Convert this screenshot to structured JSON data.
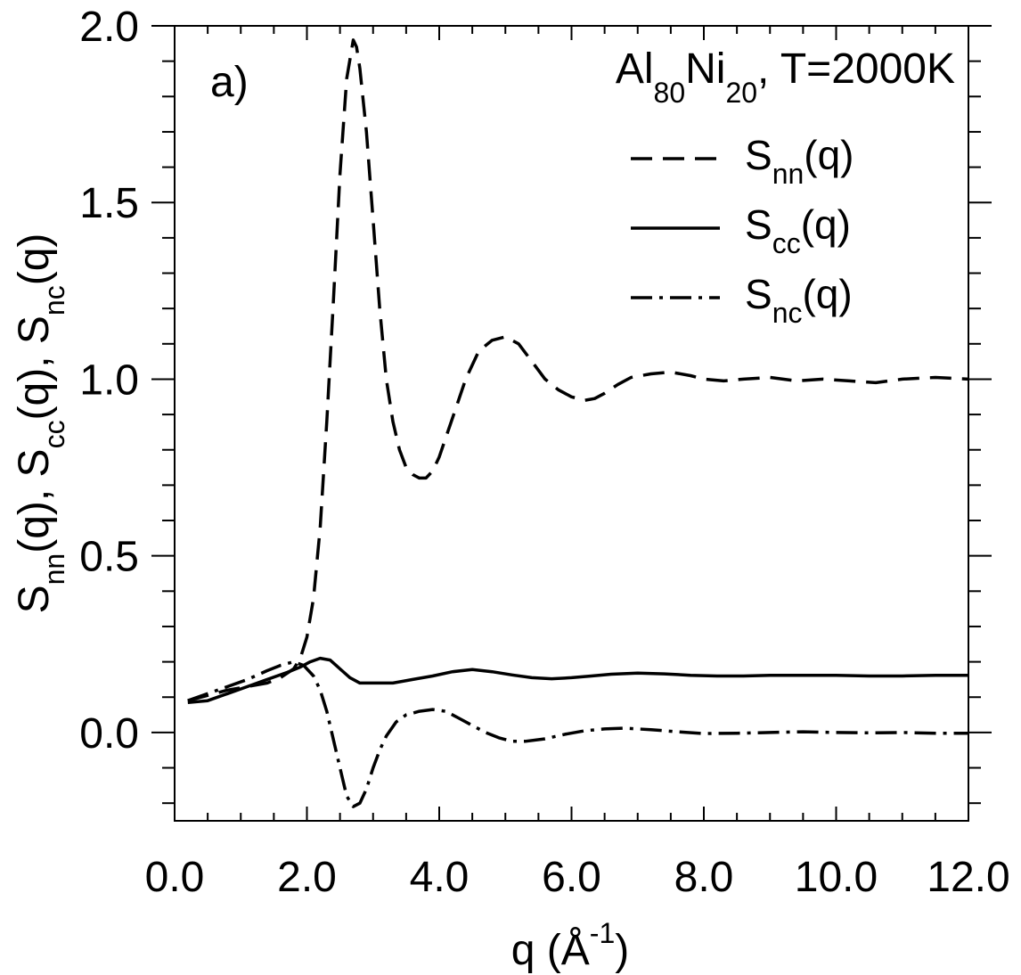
{
  "chart_data": {
    "type": "line",
    "panel_label": "a)",
    "annotation": {
      "base1": "Al",
      "sub1": "80",
      "base2": "Ni",
      "sub2": "20",
      "rest": ", T=2000K"
    },
    "xlabel": {
      "main": "q (Å",
      "sup": "-1",
      "close": ")"
    },
    "ylabel": {
      "parts": [
        {
          "base": "S",
          "sub": "nn",
          "rest": "(q), "
        },
        {
          "base": "S",
          "sub": "cc",
          "rest": "(q), "
        },
        {
          "base": "S",
          "sub": "nc",
          "rest": "(q)"
        }
      ]
    },
    "xlim": [
      0,
      12
    ],
    "ylim": [
      -0.25,
      2.0
    ],
    "x_ticks": [
      "0.0",
      "2.0",
      "4.0",
      "6.0",
      "8.0",
      "10.0",
      "12.0"
    ],
    "y_ticks": [
      "0.0",
      "0.5",
      "1.0",
      "1.5",
      "2.0"
    ],
    "grid": false,
    "legend_position": "upper-right",
    "series": [
      {
        "name": "S_nn(q)",
        "label_base": "S",
        "label_sub": "nn",
        "label_rest": "(q)",
        "style": "dashed",
        "x": [
          0.2,
          0.5,
          0.8,
          1.1,
          1.4,
          1.6,
          1.8,
          1.9,
          2.0,
          2.1,
          2.2,
          2.3,
          2.4,
          2.5,
          2.6,
          2.7,
          2.75,
          2.8,
          2.9,
          3.0,
          3.1,
          3.2,
          3.3,
          3.4,
          3.5,
          3.6,
          3.7,
          3.8,
          3.9,
          4.0,
          4.2,
          4.4,
          4.6,
          4.8,
          5.0,
          5.2,
          5.4,
          5.6,
          5.8,
          6.0,
          6.2,
          6.35,
          6.5,
          6.7,
          6.9,
          7.2,
          7.5,
          7.8,
          8.0,
          8.3,
          8.6,
          9.0,
          9.4,
          9.8,
          10.2,
          10.6,
          11.0,
          11.5,
          12.0
        ],
        "y": [
          0.09,
          0.105,
          0.12,
          0.13,
          0.14,
          0.155,
          0.18,
          0.21,
          0.27,
          0.38,
          0.58,
          0.88,
          1.22,
          1.58,
          1.85,
          1.96,
          1.94,
          1.88,
          1.7,
          1.45,
          1.2,
          1.0,
          0.88,
          0.8,
          0.75,
          0.73,
          0.72,
          0.72,
          0.74,
          0.78,
          0.89,
          1.0,
          1.08,
          1.11,
          1.12,
          1.1,
          1.05,
          1.0,
          0.97,
          0.95,
          0.94,
          0.945,
          0.96,
          0.985,
          1.005,
          1.015,
          1.02,
          1.01,
          1.0,
          0.995,
          1.0,
          1.005,
          0.995,
          1.0,
          0.995,
          0.99,
          1.0,
          1.005,
          1.0
        ]
      },
      {
        "name": "S_cc(q)",
        "label_base": "S",
        "label_sub": "cc",
        "label_rest": "(q)",
        "style": "solid",
        "x": [
          0.2,
          0.5,
          0.8,
          1.1,
          1.4,
          1.7,
          1.9,
          2.05,
          2.2,
          2.35,
          2.5,
          2.65,
          2.8,
          3.0,
          3.3,
          3.6,
          3.9,
          4.2,
          4.5,
          4.8,
          5.1,
          5.4,
          5.7,
          6.0,
          6.3,
          6.6,
          7.0,
          7.4,
          7.8,
          8.2,
          8.6,
          9.0,
          9.5,
          10.0,
          10.5,
          11.0,
          11.5,
          12.0
        ],
        "y": [
          0.085,
          0.09,
          0.11,
          0.13,
          0.15,
          0.17,
          0.185,
          0.2,
          0.21,
          0.205,
          0.18,
          0.155,
          0.14,
          0.14,
          0.14,
          0.15,
          0.16,
          0.172,
          0.178,
          0.172,
          0.163,
          0.155,
          0.152,
          0.155,
          0.16,
          0.165,
          0.168,
          0.166,
          0.162,
          0.16,
          0.16,
          0.162,
          0.162,
          0.162,
          0.16,
          0.16,
          0.162,
          0.162
        ]
      },
      {
        "name": "S_nc(q)",
        "label_base": "S",
        "label_sub": "nc",
        "label_rest": "(q)",
        "style": "dashdot",
        "x": [
          0.2,
          0.5,
          0.8,
          1.1,
          1.4,
          1.6,
          1.8,
          1.95,
          2.1,
          2.2,
          2.3,
          2.4,
          2.5,
          2.6,
          2.7,
          2.8,
          2.9,
          3.0,
          3.1,
          3.2,
          3.35,
          3.5,
          3.7,
          3.9,
          4.1,
          4.3,
          4.5,
          4.7,
          4.9,
          5.1,
          5.3,
          5.6,
          5.9,
          6.2,
          6.5,
          6.8,
          7.2,
          7.6,
          8.0,
          8.5,
          9.0,
          9.5,
          10.0,
          10.5,
          11.0,
          11.5,
          12.0
        ],
        "y": [
          0.09,
          0.11,
          0.13,
          0.15,
          0.175,
          0.19,
          0.2,
          0.19,
          0.16,
          0.12,
          0.06,
          -0.02,
          -0.1,
          -0.18,
          -0.21,
          -0.2,
          -0.16,
          -0.1,
          -0.05,
          -0.01,
          0.03,
          0.05,
          0.06,
          0.065,
          0.06,
          0.04,
          0.02,
          0.0,
          -0.015,
          -0.025,
          -0.025,
          -0.018,
          -0.005,
          0.005,
          0.01,
          0.012,
          0.008,
          0.002,
          -0.003,
          -0.002,
          0.0,
          0.002,
          0.0,
          -0.001,
          0.0,
          -0.002,
          -0.002
        ]
      }
    ]
  }
}
